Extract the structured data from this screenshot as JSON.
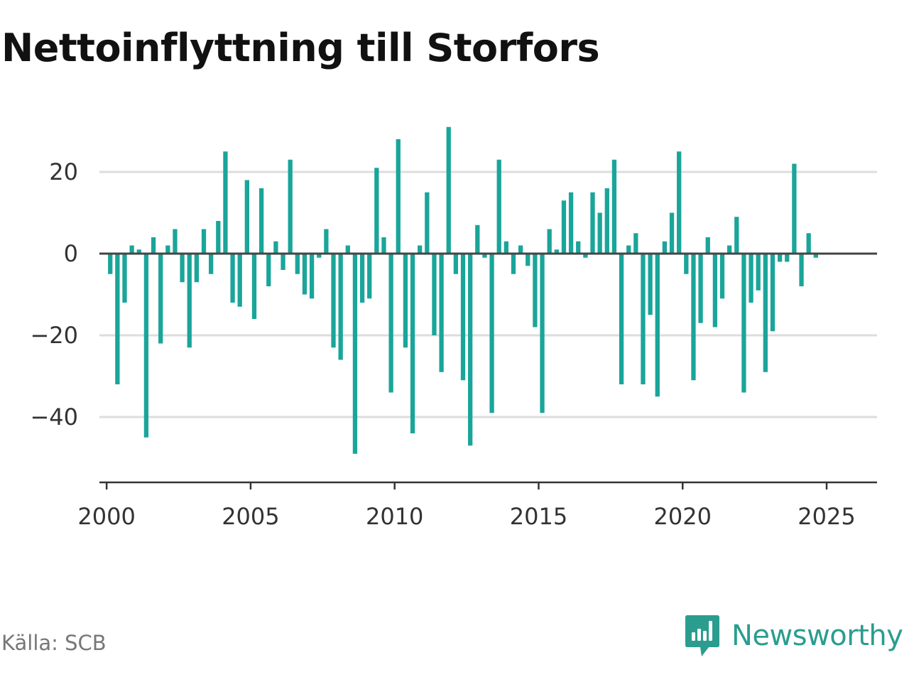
{
  "title": "Nettoinflyttning till Storfors",
  "source": "Källa: SCB",
  "brand": {
    "name": "Newsworthy",
    "icon": "newsworthy-logo-icon",
    "color": "#2a9d8f"
  },
  "colors": {
    "bar": "#1aa59a",
    "zero_line": "#444444",
    "grid": "#dddddd",
    "axis": "#333333"
  },
  "chart_data": {
    "type": "bar",
    "title": "Nettoinflyttning till Storfors",
    "xlabel": "",
    "ylabel": "",
    "frequency": "quarterly",
    "x_start": "2000-Q1",
    "ylim": [
      -56,
      36
    ],
    "xlim": [
      1999.75,
      2026.75
    ],
    "yticks": [
      20,
      0,
      -20,
      -40
    ],
    "ytick_labels": [
      "20",
      "0",
      "−20",
      "−40"
    ],
    "xticks": [
      2000,
      2005,
      2010,
      2015,
      2020,
      2025
    ],
    "xtick_labels": [
      "2000",
      "2005",
      "2010",
      "2015",
      "2020",
      "2025"
    ],
    "grid": true,
    "legend": "none",
    "values": [
      -5,
      -32,
      -12,
      2,
      1,
      -45,
      4,
      -22,
      2,
      6,
      -7,
      -23,
      -7,
      6,
      -5,
      8,
      25,
      -12,
      -13,
      18,
      -16,
      16,
      -8,
      3,
      -4,
      23,
      -5,
      -10,
      -11,
      -1,
      6,
      -23,
      -26,
      2,
      -49,
      -12,
      -11,
      21,
      4,
      -34,
      28,
      -23,
      -44,
      2,
      15,
      -20,
      -29,
      31,
      -5,
      -31,
      -47,
      7,
      -1,
      -39,
      23,
      3,
      -5,
      2,
      -3,
      -18,
      -39,
      6,
      1,
      13,
      15,
      3,
      -1,
      15,
      10,
      16,
      23,
      -32,
      2,
      5,
      -32,
      -15,
      -35,
      3,
      10,
      25,
      -5,
      -31,
      -17,
      4,
      -18,
      -11,
      2,
      9,
      -34,
      -12,
      -9,
      -29,
      -19,
      -2,
      -2,
      22,
      -8,
      5,
      -1
    ]
  }
}
